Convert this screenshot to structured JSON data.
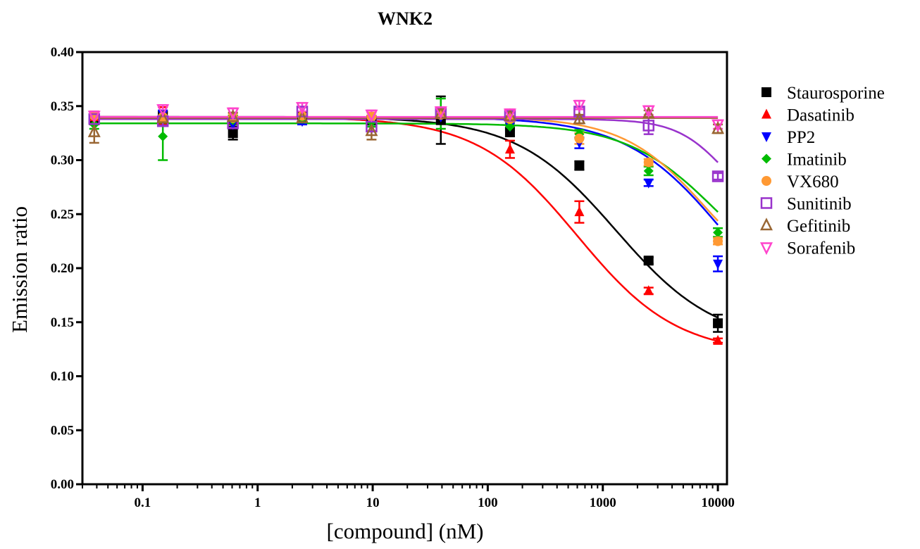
{
  "chart_data": {
    "type": "scatter",
    "title": "WNK2",
    "xlabel": "[compound] (nM)",
    "ylabel": "Emission ratio",
    "xscale": "log",
    "xlim": [
      0.03,
      12000
    ],
    "ylim": [
      0,
      0.4
    ],
    "x_ticks": [
      0.1,
      1,
      10,
      100,
      1000,
      10000
    ],
    "x_tick_labels": [
      "0.1",
      "1",
      "10",
      "100",
      "1000",
      "10000"
    ],
    "y_ticks": [
      0,
      0.05,
      0.1,
      0.15,
      0.2,
      0.25,
      0.3,
      0.35,
      0.4
    ],
    "y_tick_labels": [
      "0.00",
      "0.05",
      "0.10",
      "0.15",
      "0.20",
      "0.25",
      "0.30",
      "0.35",
      "0.40"
    ],
    "grid": false,
    "legend_position": "right",
    "x": [
      0.038,
      0.15,
      0.61,
      2.44,
      9.77,
      39.1,
      156,
      625,
      2500,
      10000
    ],
    "series": [
      {
        "name": "Staurosporine",
        "color": "#000000",
        "marker": "square-filled",
        "values": [
          0.339,
          0.341,
          0.325,
          0.34,
          0.337,
          0.337,
          0.326,
          0.295,
          0.207,
          0.149
        ],
        "errors": [
          0.006,
          0.004,
          0.006,
          0.003,
          0.004,
          0.022,
          0.004,
          0.004,
          0.003,
          0.008
        ],
        "fit": {
          "top": 0.34,
          "bottom": 0.13,
          "ic50": 1300,
          "hill": 1.0
        }
      },
      {
        "name": "Dasatinib",
        "color": "#ff0000",
        "marker": "triangle-up-filled",
        "values": [
          0.34,
          0.341,
          0.337,
          0.341,
          0.338,
          0.342,
          0.31,
          0.252,
          0.179,
          0.133
        ],
        "errors": [
          0.004,
          0.008,
          0.004,
          0.003,
          0.003,
          0.004,
          0.008,
          0.01,
          0.003,
          0.002
        ],
        "fit": {
          "top": 0.34,
          "bottom": 0.12,
          "ic50": 600,
          "hill": 1.0
        }
      },
      {
        "name": "PP2",
        "color": "#0000ff",
        "marker": "triangle-down-filled",
        "values": [
          0.34,
          0.342,
          0.333,
          0.336,
          0.335,
          0.34,
          0.331,
          0.316,
          0.279,
          0.204
        ],
        "errors": [
          0.004,
          0.004,
          0.004,
          0.003,
          0.004,
          0.005,
          0.004,
          0.005,
          0.003,
          0.007
        ],
        "fit": {
          "top": 0.34,
          "bottom": 0.12,
          "ic50": 12000,
          "hill": 1.0
        }
      },
      {
        "name": "Imatinib",
        "color": "#00bb00",
        "marker": "diamond-filled",
        "values": [
          0.333,
          0.322,
          0.337,
          0.338,
          0.335,
          0.343,
          0.331,
          0.324,
          0.29,
          0.233
        ],
        "errors": [
          0.004,
          0.022,
          0.004,
          0.003,
          0.004,
          0.014,
          0.003,
          0.004,
          0.004,
          0.004
        ],
        "fit": {
          "top": 0.334,
          "bottom": 0.17,
          "ic50": 10000,
          "hill": 1.1
        }
      },
      {
        "name": "VX680",
        "color": "#ff9933",
        "marker": "circle-filled",
        "values": [
          0.341,
          0.34,
          0.339,
          0.341,
          0.34,
          0.342,
          0.338,
          0.32,
          0.298,
          0.225
        ],
        "errors": [
          0.004,
          0.004,
          0.004,
          0.003,
          0.004,
          0.005,
          0.003,
          0.005,
          0.003,
          0.003
        ],
        "fit": {
          "top": 0.34,
          "bottom": 0.17,
          "ic50": 8000,
          "hill": 1.2
        }
      },
      {
        "name": "Sunitinib",
        "color": "#9933cc",
        "marker": "square-open",
        "values": [
          0.338,
          0.336,
          0.334,
          0.345,
          0.331,
          0.344,
          0.341,
          0.345,
          0.332,
          0.285
        ],
        "errors": [
          0.004,
          0.004,
          0.004,
          0.004,
          0.004,
          0.004,
          0.004,
          0.004,
          0.008,
          0.003
        ],
        "fit": {
          "top": 0.338,
          "bottom": 0.24,
          "ic50": 12000,
          "hill": 2.0
        }
      },
      {
        "name": "Gefitinib",
        "color": "#996633",
        "marker": "triangle-up-open",
        "values": [
          0.326,
          0.339,
          0.34,
          0.339,
          0.327,
          0.343,
          0.341,
          0.338,
          0.343,
          0.329
        ],
        "errors": [
          0.01,
          0.004,
          0.004,
          0.003,
          0.008,
          0.004,
          0.004,
          0.004,
          0.003,
          0.004
        ],
        "fit": {
          "top": 0.339,
          "bottom": 0.339,
          "ic50": 1000,
          "hill": 1.0
        }
      },
      {
        "name": "Sorafenib",
        "color": "#ff44cc",
        "marker": "triangle-down-open",
        "values": [
          0.341,
          0.347,
          0.344,
          0.349,
          0.342,
          0.345,
          0.343,
          0.351,
          0.346,
          0.333
        ],
        "errors": [
          0.004,
          0.004,
          0.004,
          0.004,
          0.004,
          0.004,
          0.004,
          0.004,
          0.004,
          0.004
        ],
        "fit": {
          "top": 0.34,
          "bottom": 0.34,
          "ic50": 1000,
          "hill": 1.0
        }
      }
    ]
  }
}
